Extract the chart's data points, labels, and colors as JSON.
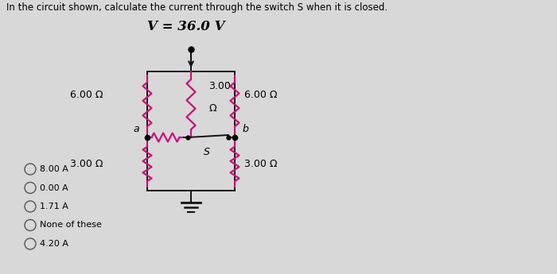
{
  "bg_color": "#d8d8d8",
  "title_line1": "In the circuit shown, calculate the current through the switch S when it is closed.",
  "voltage_label": "V = 36.0 V",
  "circuit": {
    "left_top_resistor": "6.00 Ω",
    "center_top_resistor_line1": "3.00",
    "center_top_resistor_line2": "Ω",
    "right_top_resistor": "6.00 Ω",
    "left_bot_resistor": "3.00 Ω",
    "right_bot_resistor": "3.00 Ω",
    "node_a": "a",
    "node_b": "b",
    "switch": "S"
  },
  "choices": [
    "8.00 A",
    "0.00 A",
    "1.71 A",
    "None of these",
    "4.20 A"
  ],
  "font_size_title": 8.5,
  "font_size_voltage": 12,
  "font_size_labels": 9,
  "font_size_choices": 8,
  "resistor_color": "#cc1177",
  "line_color": "#111111"
}
